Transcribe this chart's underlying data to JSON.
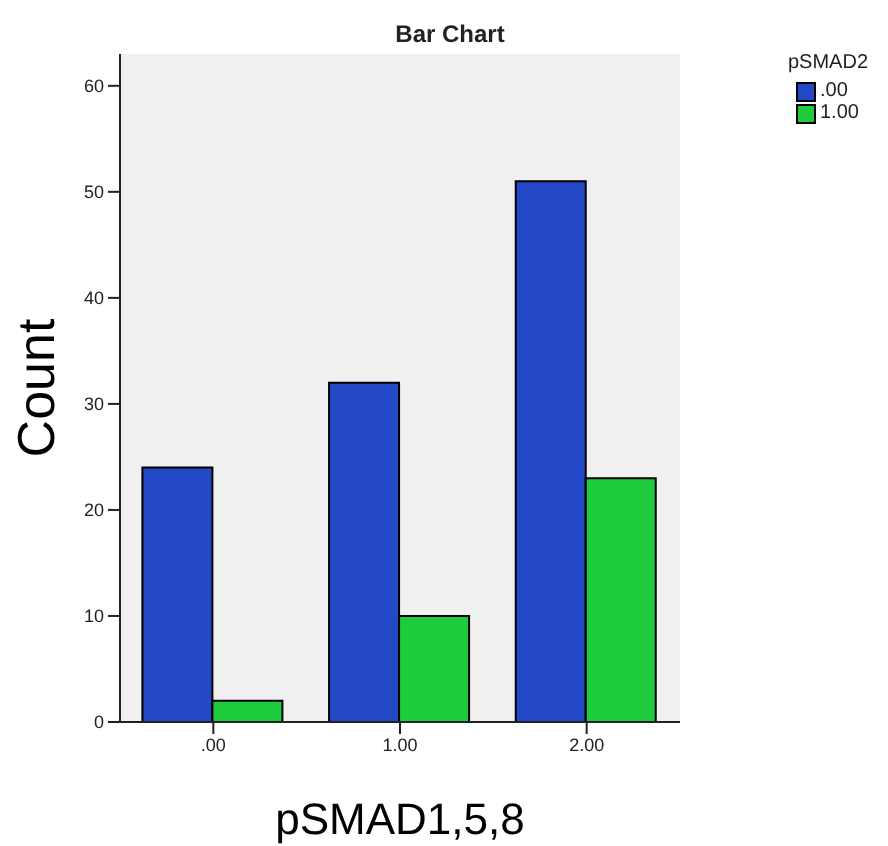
{
  "chart_data": {
    "type": "bar",
    "title": "Bar Chart",
    "xlabel": "pSMAD1,5,8",
    "ylabel": "Count",
    "legend_title": "pSMAD2",
    "categories": [
      ".00",
      "1.00",
      "2.00"
    ],
    "series": [
      {
        "name": ".00",
        "color": "#2349c6",
        "values": [
          24,
          32,
          51
        ]
      },
      {
        "name": "1.00",
        "color": "#1ecb3c",
        "values": [
          2,
          10,
          23
        ]
      }
    ],
    "ylim": [
      0,
      63
    ],
    "yticks": [
      0,
      10,
      20,
      30,
      40,
      50,
      60
    ],
    "legend": "top right"
  }
}
